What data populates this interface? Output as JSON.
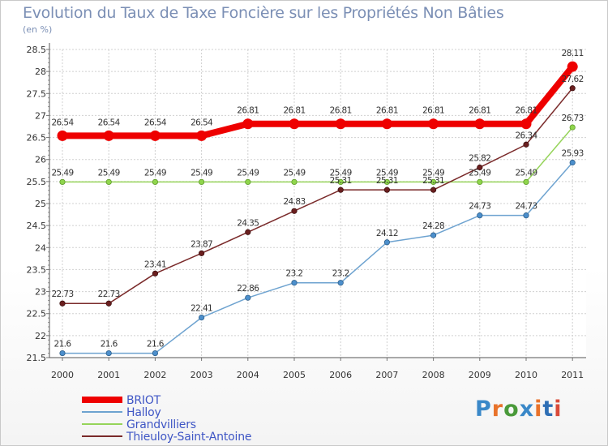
{
  "title": "Evolution du Taux de Taxe Foncière sur les Propriétés Non Bâties",
  "unit": "(en %)",
  "logo_text": "Proxiti",
  "colors": {
    "briot": "#ee0000",
    "halloy": "#6ea3d0",
    "grandvilliers": "#96d45a",
    "thieuloy": "#7a2a2a",
    "grid": "#d0d0d0",
    "axis": "#555555",
    "label": "#333333"
  },
  "chart_data": {
    "type": "line",
    "title": "Evolution du Taux de Taxe Foncière sur les Propriétés Non Bâties",
    "xlabel": "",
    "ylabel": "(en %)",
    "ylim": [
      21.5,
      28.5
    ],
    "yticks": [
      "21.5",
      "22",
      "22.5",
      "23",
      "23.5",
      "24",
      "24.5",
      "25",
      "25.5",
      "26",
      "26.5",
      "27",
      "27.5",
      "28",
      "28.5"
    ],
    "categories": [
      "2000",
      "2001",
      "2002",
      "2003",
      "2004",
      "2005",
      "2006",
      "2007",
      "2008",
      "2009",
      "2010",
      "2011"
    ],
    "series": [
      {
        "name": "BRIOT",
        "key": "briot",
        "values": [
          26.54,
          26.54,
          26.54,
          26.54,
          26.81,
          26.81,
          26.81,
          26.81,
          26.81,
          26.81,
          26.81,
          28.11
        ],
        "labels": [
          "26.54",
          "26.54",
          "26.54",
          "26.54",
          "26.81",
          "26.81",
          "26.81",
          "26.81",
          "26.81",
          "26.81",
          "26.81",
          "28.11"
        ]
      },
      {
        "name": "Halloy",
        "key": "halloy",
        "values": [
          21.6,
          21.6,
          21.6,
          22.41,
          22.86,
          23.2,
          23.2,
          24.12,
          24.28,
          24.73,
          24.73,
          25.93
        ],
        "labels": [
          "21.6",
          "21.6",
          "21.6",
          "22.41",
          "22.86",
          "23.2",
          "23.2",
          "24.12",
          "24.28",
          "24.73",
          "24.73",
          "25.93"
        ]
      },
      {
        "name": "Grandvilliers",
        "key": "grandvilliers",
        "values": [
          25.49,
          25.49,
          25.49,
          25.49,
          25.49,
          25.49,
          25.49,
          25.49,
          25.49,
          25.49,
          25.49,
          26.73
        ],
        "labels": [
          "25.49",
          "25.49",
          "25.49",
          "25.49",
          "25.49",
          "25.49",
          "25.49",
          "25.49",
          "25.49",
          "25.49",
          "25.49",
          "26.73"
        ]
      },
      {
        "name": "Thieuloy-Saint-Antoine",
        "key": "thieuloy",
        "values": [
          22.73,
          22.73,
          23.41,
          23.87,
          24.35,
          24.83,
          25.31,
          25.31,
          25.31,
          25.82,
          26.34,
          27.62
        ],
        "labels": [
          "22.73",
          "22.73",
          "23.41",
          "23.87",
          "24.35",
          "24.83",
          "25.31",
          "25.31",
          "25.31",
          "25.82",
          "26.34",
          "27.62"
        ]
      }
    ],
    "legend": [
      "BRIOT",
      "Halloy",
      "Grandvilliers",
      "Thieuloy-Saint-Antoine"
    ],
    "legend_position": "bottom-left",
    "grid": true
  }
}
